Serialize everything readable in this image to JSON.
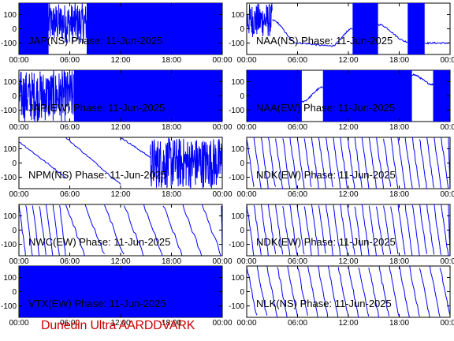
{
  "footer_text": "Dunedin Ultra AARDDVARK",
  "footer_color": "#cc0000",
  "trace_color": "#0000ff",
  "chart_data": [
    {
      "type": "line",
      "title": "JAP(NS) Phase: 11-Jun-2025",
      "yticks": [
        "100",
        "0",
        "-100"
      ],
      "xticks": [
        "00:00",
        "06:00",
        "12:00",
        "18:00",
        "00:00"
      ],
      "ylim": [
        -180,
        180
      ],
      "series": [
        {
          "segments": [
            [
              0.0,
              3.5,
              "dense",
              -180,
              180
            ],
            [
              3.5,
              8.0,
              "noisy",
              -100,
              180
            ],
            [
              8.0,
              12.0,
              "dense",
              -180,
              180
            ],
            [
              12.0,
              14.0,
              "dense",
              -180,
              180
            ],
            [
              14.0,
              24.0,
              "dense",
              -180,
              180
            ]
          ]
        }
      ]
    },
    {
      "type": "line",
      "title": "NAA(NS) Phase: 11-Jun-2025",
      "yticks": [
        "100",
        "0",
        "-100"
      ],
      "xticks": [
        "00:00",
        "06:00",
        "12:00",
        "18:00",
        "00:00"
      ],
      "ylim": [
        -180,
        180
      ],
      "series": [
        {
          "segments": [
            [
              0.0,
              3.0,
              "noisy",
              -60,
              180
            ],
            [
              3.0,
              6.0,
              "curve",
              60,
              -100
            ],
            [
              6.0,
              10.0,
              "curve",
              -100,
              -120
            ],
            [
              10.0,
              12.5,
              "curve",
              -120,
              0
            ],
            [
              12.5,
              15.5,
              "dense",
              -180,
              180
            ],
            [
              15.5,
              19.0,
              "curve",
              30,
              -90
            ],
            [
              19.0,
              21.0,
              "dense",
              -180,
              180
            ],
            [
              21.0,
              24.0,
              "curve",
              -100,
              -100
            ]
          ]
        }
      ]
    },
    {
      "type": "line",
      "title": "JAP(EW) Phase: 11-Jun-2025",
      "yticks": [
        "100",
        "0",
        "-100"
      ],
      "xticks": [
        "00:00",
        "06:00",
        "12:00",
        "18:00",
        "00:00"
      ],
      "ylim": [
        -180,
        180
      ],
      "series": [
        {
          "segments": [
            [
              0.0,
              6.5,
              "noisy",
              -180,
              180
            ],
            [
              6.5,
              24.0,
              "dense",
              -180,
              180
            ]
          ]
        }
      ]
    },
    {
      "type": "line",
      "title": "NAA(EW) Phase: 11-Jun-2025",
      "yticks": [
        "100",
        "0",
        "-100"
      ],
      "xticks": [
        "00:00",
        "06:00",
        "12:00",
        "18:00",
        "00:00"
      ],
      "ylim": [
        -180,
        180
      ],
      "series": [
        {
          "segments": [
            [
              0.0,
              6.5,
              "dense",
              -180,
              180
            ],
            [
              6.5,
              9.0,
              "curve",
              -40,
              60
            ],
            [
              9.0,
              19.5,
              "dense",
              -180,
              180
            ],
            [
              19.5,
              22.0,
              "curve",
              150,
              80
            ],
            [
              22.0,
              24.0,
              "dense",
              -180,
              180
            ]
          ]
        }
      ]
    },
    {
      "type": "line",
      "title": "NPM(NS) Phase: 11-Jun-2025",
      "yticks": [
        "100",
        "0",
        "-100"
      ],
      "xticks": [
        "00:00",
        "06:00",
        "12:00",
        "18:00",
        "00:00"
      ],
      "ylim": [
        -180,
        180
      ],
      "series": [
        {
          "segments": [
            [
              0.0,
              5.5,
              "ramp",
              150,
              -100
            ],
            [
              5.5,
              12.0,
              "ramp",
              180,
              -150
            ],
            [
              12.0,
              15.5,
              "ramp",
              180,
              40
            ],
            [
              15.5,
              24.0,
              "noisy",
              -180,
              180
            ]
          ]
        }
      ]
    },
    {
      "type": "line",
      "title": "NDK(EW) Phase: 11-Jun-2025",
      "yticks": [
        "100",
        "0",
        "-100"
      ],
      "xticks": [
        "00:00",
        "06:00",
        "12:00",
        "18:00",
        "00:00"
      ],
      "ylim": [
        -180,
        180
      ],
      "series": [
        {
          "segments": [
            [
              0.0,
              24.0,
              "saw",
              180,
              -180,
              0.85
            ]
          ]
        }
      ]
    },
    {
      "type": "line",
      "title": "NWC(EW) Phase: 11-Jun-2025",
      "yticks": [
        "100",
        "0",
        "-100"
      ],
      "xticks": [
        "00:00",
        "06:00",
        "12:00",
        "18:00",
        "00:00"
      ],
      "ylim": [
        -180,
        180
      ],
      "series": [
        {
          "segments": [
            [
              0.0,
              5.5,
              "saw",
              180,
              -180,
              0.8
            ],
            [
              5.5,
              24.0,
              "saw",
              180,
              -180,
              2.3
            ]
          ]
        }
      ]
    },
    {
      "type": "line",
      "title": "NDK(EW) Phase: 11-Jun-2025",
      "yticks": [
        "100",
        "0",
        "-100"
      ],
      "xticks": [
        "00:00",
        "06:00",
        "12:00",
        "18:00",
        "00:00"
      ],
      "ylim": [
        -180,
        180
      ],
      "series": [
        {
          "segments": [
            [
              0.0,
              24.0,
              "saw",
              180,
              -180,
              0.85
            ]
          ]
        }
      ]
    },
    {
      "type": "line",
      "title": "VTX(EW) Phase: 11-Jun-2025",
      "yticks": [
        "100",
        "0",
        "-100"
      ],
      "xticks": [
        "00:00",
        "06:00",
        "12:00",
        "18:00",
        "00:00"
      ],
      "ylim": [
        -180,
        180
      ],
      "series": [
        {
          "segments": [
            [
              0.0,
              24.0,
              "dense",
              -180,
              180
            ]
          ]
        }
      ]
    },
    {
      "type": "line",
      "title": "NLK(NS) Phase: 11-Jun-2025",
      "yticks": [
        "100",
        "0",
        "-100"
      ],
      "xticks": [
        "00:00",
        "06:00",
        "12:00",
        "18:00",
        "00:00"
      ],
      "ylim": [
        -180,
        180
      ],
      "series": [
        {
          "segments": [
            [
              0.0,
              24.0,
              "saw",
              180,
              -180,
              1.2
            ]
          ]
        }
      ]
    }
  ]
}
